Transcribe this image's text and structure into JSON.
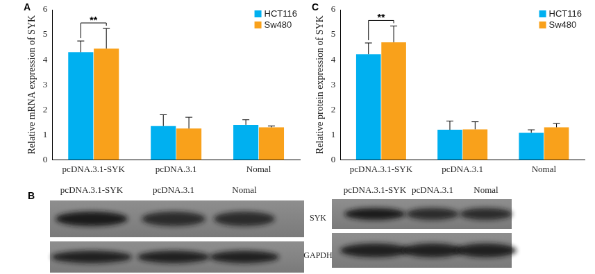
{
  "chart_data": [
    {
      "type": "bar",
      "title": "A",
      "y_label": "Relative mRNA expression of SYK",
      "categories": [
        "pcDNA.3.1-SYK",
        "pcDNA.3.1",
        "Nomal"
      ],
      "series": [
        {
          "name": "HCT116",
          "color": "#00b0f0",
          "values": [
            4.3,
            1.35,
            1.4
          ],
          "errors": [
            0.45,
            0.45,
            0.2
          ]
        },
        {
          "name": "Sw480",
          "color": "#f9a11b",
          "values": [
            4.45,
            1.25,
            1.3
          ],
          "errors": [
            0.8,
            0.45,
            0.05
          ]
        }
      ],
      "ylim": [
        0,
        6
      ],
      "yticks": [
        0,
        1,
        2,
        3,
        4,
        5,
        6
      ],
      "grid": false,
      "legend": "upper right",
      "annotations": [
        {
          "text": "**",
          "category": "pcDNA.3.1-SYK",
          "between": [
            "HCT116",
            "Sw480"
          ]
        }
      ]
    },
    {
      "type": "bar",
      "title": "C",
      "y_label": "Relative protein expression of SYK",
      "categories": [
        "pcDNA.3.1-SYK",
        "pcDNA.3.1",
        "Nomal"
      ],
      "series": [
        {
          "name": "HCT116",
          "color": "#00b0f0",
          "values": [
            4.22,
            1.2,
            1.08
          ],
          "errors": [
            0.45,
            0.35,
            0.12
          ]
        },
        {
          "name": "Sw480",
          "color": "#f9a11b",
          "values": [
            4.7,
            1.22,
            1.3
          ],
          "errors": [
            0.65,
            0.3,
            0.15
          ]
        }
      ],
      "ylim": [
        0,
        6
      ],
      "yticks": [
        0,
        1,
        2,
        3,
        4,
        5,
        6
      ],
      "grid": false,
      "legend": "upper right",
      "annotations": [
        {
          "text": "**",
          "category": "pcDNA.3.1-SYK",
          "between": [
            "HCT116",
            "Sw480"
          ]
        }
      ]
    }
  ],
  "blot": {
    "title": "B",
    "panels": [
      {
        "lanes": [
          "pcDNA.3.1-SYK",
          "pcDNA.3.1",
          "Nomal"
        ]
      },
      {
        "lanes": [
          "pcDNA.3.1-SYK",
          "pcDNA.3.1",
          "Nomal"
        ]
      }
    ],
    "rows": [
      "SYK",
      "GAPDH"
    ]
  }
}
